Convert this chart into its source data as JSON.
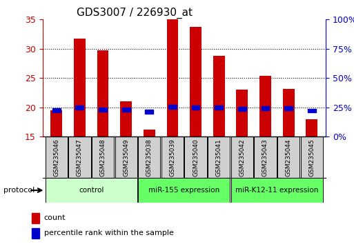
{
  "title": "GDS3007 / 226930_at",
  "samples": [
    "GSM235046",
    "GSM235047",
    "GSM235048",
    "GSM235049",
    "GSM235038",
    "GSM235039",
    "GSM235040",
    "GSM235041",
    "GSM235042",
    "GSM235043",
    "GSM235044",
    "GSM235045"
  ],
  "bar_values": [
    19.5,
    31.7,
    29.7,
    21.0,
    16.2,
    35.0,
    33.8,
    28.8,
    23.0,
    25.4,
    23.2,
    18.0
  ],
  "percentile_values": [
    22.5,
    24.8,
    23.2,
    23.0,
    21.2,
    25.2,
    24.7,
    24.7,
    23.7,
    24.0,
    24.3,
    22.2
  ],
  "ylim_left": [
    15,
    35
  ],
  "ylim_right": [
    0,
    100
  ],
  "yticks_left": [
    15,
    20,
    25,
    30,
    35
  ],
  "yticks_right": [
    0,
    25,
    50,
    75,
    100
  ],
  "ytick_labels_right": [
    "0%",
    "25%",
    "50%",
    "75%",
    "100%"
  ],
  "bar_color": "#cc0000",
  "percentile_color": "#0000cc",
  "bar_width": 0.5,
  "groups": [
    {
      "label": "control",
      "start": 0,
      "end": 4,
      "color": "#ccffcc"
    },
    {
      "label": "miR-155 expression",
      "start": 4,
      "end": 8,
      "color": "#66ff66"
    },
    {
      "label": "miR-K12-11 expression",
      "start": 8,
      "end": 12,
      "color": "#66ff66"
    }
  ],
  "protocol_label": "protocol",
  "legend_count_label": "count",
  "legend_percentile_label": "percentile rank within the sample",
  "grid_color": "#000000",
  "grid_linewidth": 0.8,
  "tick_color_left": "#cc0000",
  "tick_color_right": "#0000cc"
}
